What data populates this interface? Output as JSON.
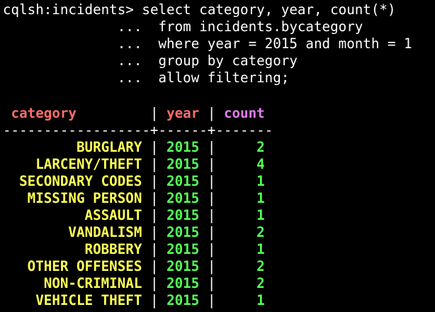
{
  "prompt": "cqlsh:incidents>",
  "query_lines": [
    "select category, year, count(*)",
    "from incidents.bycategory",
    "where year = 2015 and month = 1",
    "group by category",
    "allow filtering;"
  ],
  "continuation_marker": "...",
  "columns": [
    "category",
    "year",
    "count"
  ],
  "divider": "------------------+------+-------",
  "rows": [
    {
      "category": "BURGLARY",
      "year": "2015",
      "count": "2"
    },
    {
      "category": "LARCENY/THEFT",
      "year": "2015",
      "count": "4"
    },
    {
      "category": "SECONDARY CODES",
      "year": "2015",
      "count": "1"
    },
    {
      "category": "MISSING PERSON",
      "year": "2015",
      "count": "1"
    },
    {
      "category": "ASSAULT",
      "year": "2015",
      "count": "1"
    },
    {
      "category": "VANDALISM",
      "year": "2015",
      "count": "2"
    },
    {
      "category": "ROBBERY",
      "year": "2015",
      "count": "1"
    },
    {
      "category": "OTHER OFFENSES",
      "year": "2015",
      "count": "2"
    },
    {
      "category": "NON-CRIMINAL",
      "year": "2015",
      "count": "2"
    },
    {
      "category": "VEHICLE THEFT",
      "year": "2015",
      "count": "1"
    }
  ],
  "colors": {
    "background": "#000000",
    "text": "#ffffff",
    "header_category": "#ff6c6b",
    "header_year": "#ff6c6b",
    "header_count": "#e07cf0",
    "category_values": "#ffff55",
    "numeric_values": "#55ff55"
  }
}
